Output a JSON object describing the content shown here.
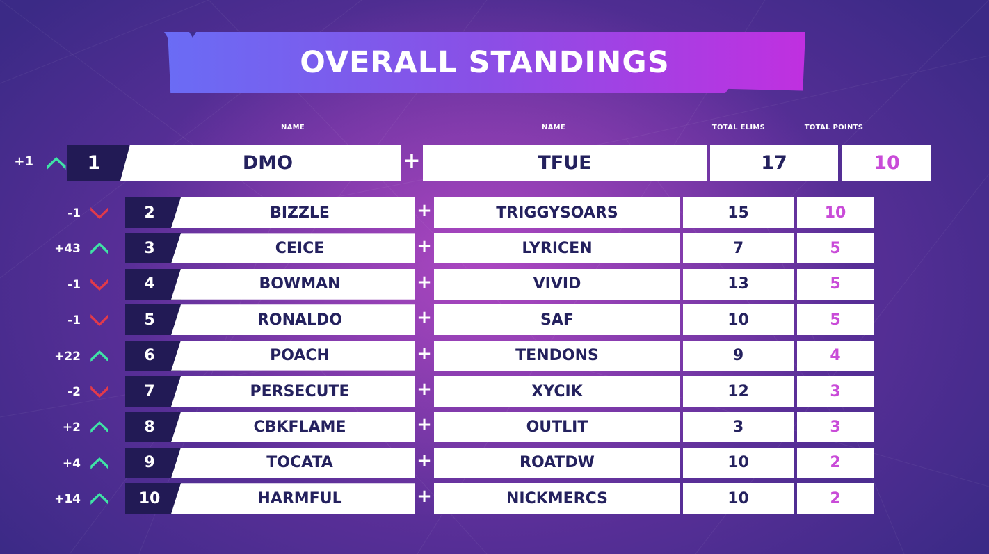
{
  "title": "OVERALL STANDINGS",
  "headers": {
    "name1": "NAME",
    "name2": "NAME",
    "elims": "TOTAL ELIMS",
    "points": "TOTAL POINTS"
  },
  "colors": {
    "up": "#3fe3a6",
    "down": "#e23a4a",
    "points": "#c94bd8",
    "rank_bg": "#221a55"
  },
  "rows": [
    {
      "change": "+1",
      "direction": "up",
      "rank": "1",
      "player1": "DMO",
      "player2": "TFUE",
      "elims": "17",
      "points": "10"
    },
    {
      "change": "-1",
      "direction": "down",
      "rank": "2",
      "player1": "BIZZLE",
      "player2": "TRIGGYSOARS",
      "elims": "15",
      "points": "10"
    },
    {
      "change": "+43",
      "direction": "up",
      "rank": "3",
      "player1": "CEICE",
      "player2": "LYRICEN",
      "elims": "7",
      "points": "5"
    },
    {
      "change": "-1",
      "direction": "down",
      "rank": "4",
      "player1": "BOWMAN",
      "player2": "VIVID",
      "elims": "13",
      "points": "5"
    },
    {
      "change": "-1",
      "direction": "down",
      "rank": "5",
      "player1": "RONALDO",
      "player2": "SAF",
      "elims": "10",
      "points": "5"
    },
    {
      "change": "+22",
      "direction": "up",
      "rank": "6",
      "player1": "POACH",
      "player2": "TENDONS",
      "elims": "9",
      "points": "4"
    },
    {
      "change": "-2",
      "direction": "down",
      "rank": "7",
      "player1": "PERSECUTE",
      "player2": "XYCIK",
      "elims": "12",
      "points": "3"
    },
    {
      "change": "+2",
      "direction": "up",
      "rank": "8",
      "player1": "CBKFLAME",
      "player2": "OUTLIT",
      "elims": "3",
      "points": "3"
    },
    {
      "change": "+4",
      "direction": "up",
      "rank": "9",
      "player1": "TOCATA",
      "player2": "ROATDW",
      "elims": "10",
      "points": "2"
    },
    {
      "change": "+14",
      "direction": "up",
      "rank": "10",
      "player1": "HARMFUL",
      "player2": "NICKMERCS",
      "elims": "10",
      "points": "2"
    }
  ]
}
